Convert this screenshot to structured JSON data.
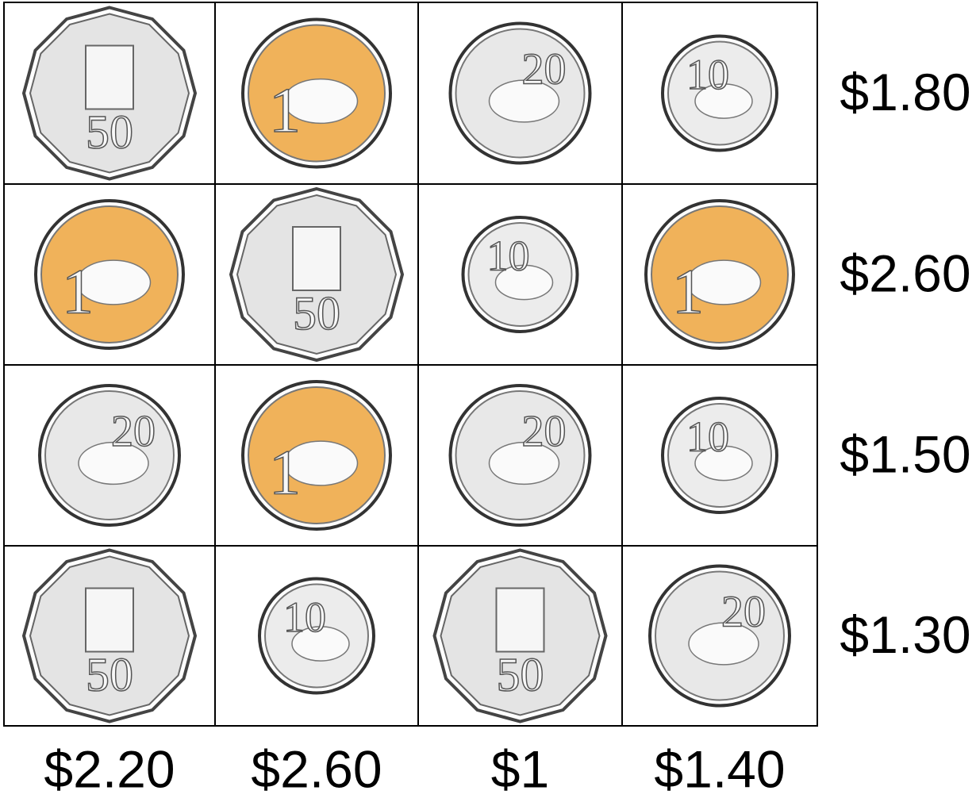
{
  "grid": {
    "rows": [
      [
        "50",
        "1",
        "20",
        "10"
      ],
      [
        "1",
        "50",
        "10",
        "1"
      ],
      [
        "20",
        "1",
        "20",
        "10"
      ],
      [
        "50",
        "10",
        "50",
        "20"
      ]
    ]
  },
  "row_totals": [
    "$1.80",
    "$2.60",
    "$1.50",
    "$1.30"
  ],
  "column_totals": [
    "$2.20",
    "$2.60",
    "$1",
    "$1.40"
  ]
}
